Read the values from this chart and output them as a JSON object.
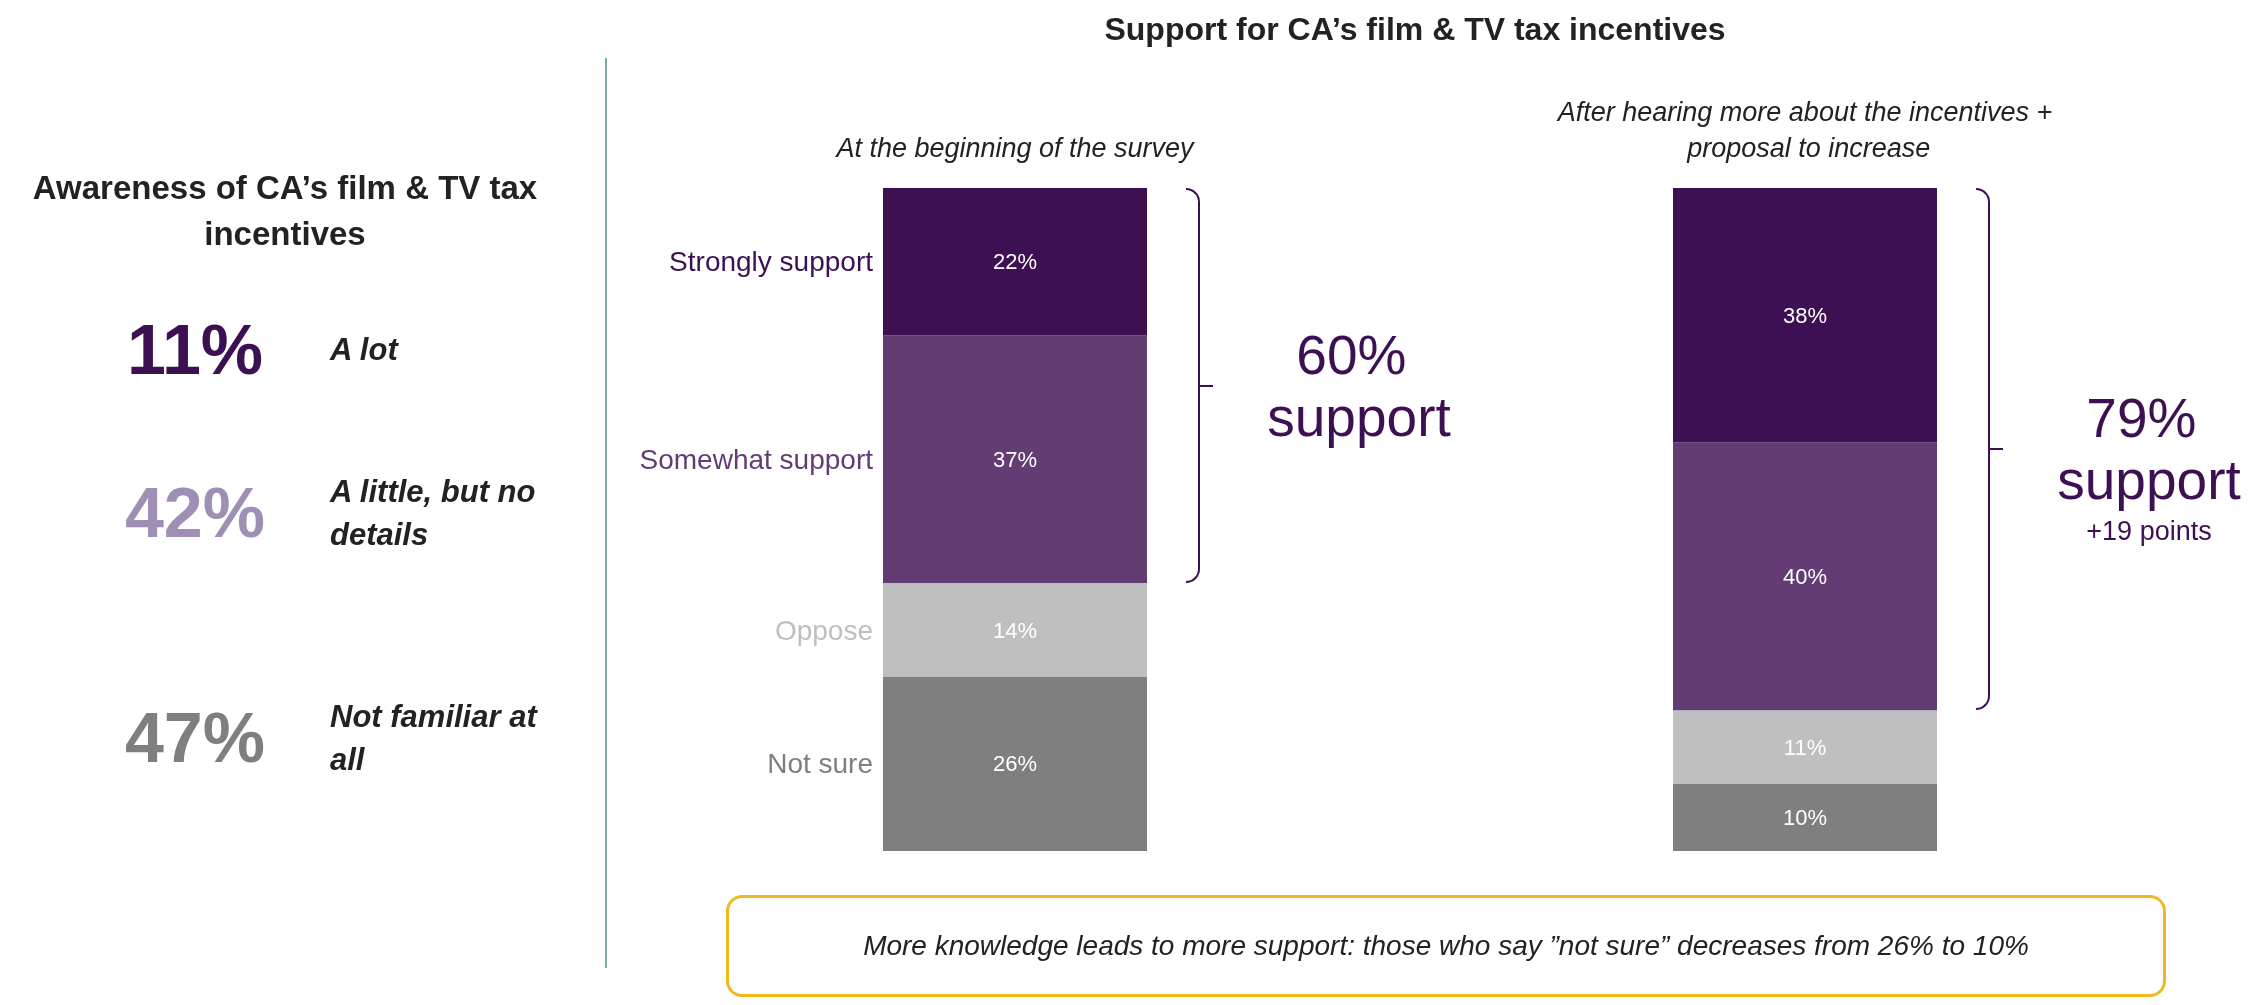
{
  "chart_data": [
    {
      "type": "other",
      "title": "Awareness of CA’s film & TV tax incentives",
      "categories": [
        "A lot",
        "A little, but no details",
        "Not familiar at all"
      ],
      "colors": [
        "#3c1053",
        "#a08fb5",
        "#7f7f7f"
      ],
      "value_labels": [
        "11%",
        "42%",
        "47%"
      ]
    },
    {
      "type": "bar",
      "stacked": true,
      "title": "Support for CA’s film & TV tax incentives",
      "categories": [
        "At the beginning of the survey",
        "After hearing more about the incentives + proposal to increase"
      ],
      "series": [
        {
          "name": "Not sure",
          "color": "#7f7f7f",
          "values": [
            26,
            10
          ],
          "value_labels": [
            "26%",
            "10%"
          ]
        },
        {
          "name": "Oppose",
          "color": "#bfbfbf",
          "values": [
            14,
            11
          ],
          "value_labels": [
            "14%",
            "11%"
          ]
        },
        {
          "name": "Somewhat support",
          "color": "#633c74",
          "values": [
            37,
            40
          ],
          "value_labels": [
            "37%",
            "40%"
          ]
        },
        {
          "name": "Strongly support",
          "color": "#3c1053",
          "values": [
            22,
            38
          ],
          "value_labels": [
            "22%",
            "38%"
          ]
        }
      ],
      "annotations": [
        "60% support",
        "79% support",
        "+19 points",
        "More knowledge leads to more support: those who say ”not sure” decreases from 26% to 10%"
      ]
    }
  ]
}
